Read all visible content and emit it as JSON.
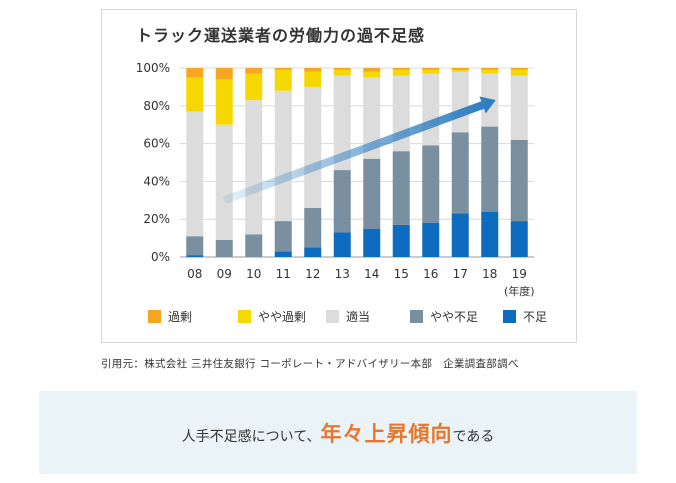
{
  "colors": {
    "over": "#f5a623",
    "slightly_over": "#f5d800",
    "appropriate": "#dcdcdc",
    "slightly_short": "#7a8fa0",
    "short": "#0e6cc0",
    "arrow": "#2f7fc1",
    "banner_bg": "#e9f3f8",
    "emphasis": "#e8762c"
  },
  "chart_data": {
    "type": "bar",
    "stacked": true,
    "title": "トラック運送業者の労働力の過不足感",
    "categories": [
      "08",
      "09",
      "10",
      "11",
      "12",
      "13",
      "14",
      "15",
      "16",
      "17",
      "18",
      "19"
    ],
    "x_unit": "(年度)",
    "y_ticks": [
      "0%",
      "20%",
      "40%",
      "60%",
      "80%",
      "100%"
    ],
    "ylim": [
      0,
      100
    ],
    "grid": true,
    "legend_position": "bottom",
    "series": [
      {
        "name": "不足",
        "color": "#0e6cc0",
        "values": [
          1,
          0,
          0,
          3,
          5,
          13,
          15,
          17,
          18,
          23,
          24,
          19
        ]
      },
      {
        "name": "やや不足",
        "color": "#7a8fa0",
        "values": [
          10,
          9,
          12,
          16,
          21,
          33,
          37,
          39,
          41,
          43,
          45,
          43
        ]
      },
      {
        "name": "適当",
        "color": "#dcdcdc",
        "values": [
          66,
          61,
          71,
          69,
          64,
          50,
          43,
          40,
          38,
          32,
          28,
          34
        ]
      },
      {
        "name": "やや過剰",
        "color": "#f5d800",
        "values": [
          18,
          24,
          14,
          11,
          8,
          3,
          3,
          3,
          2,
          1,
          2,
          3
        ]
      },
      {
        "name": "過剰",
        "color": "#f5a623",
        "values": [
          5,
          6,
          3,
          1,
          2,
          1,
          2,
          1,
          1,
          1,
          1,
          1
        ]
      }
    ],
    "legend": [
      "過剰",
      "やや過剰",
      "適当",
      "やや不足",
      "不足"
    ],
    "trend_arrow": {
      "from_category": "09",
      "from_value": 30,
      "to_category": "18",
      "to_value": 83
    }
  },
  "source_text": "引用元：株式会社 三井住友銀行 コーポレート・アドバイザリー本部　企業調査部調べ",
  "banner": {
    "text_before": "人手不足感について、",
    "emphasis": "年々上昇傾向",
    "text_after": "である"
  }
}
